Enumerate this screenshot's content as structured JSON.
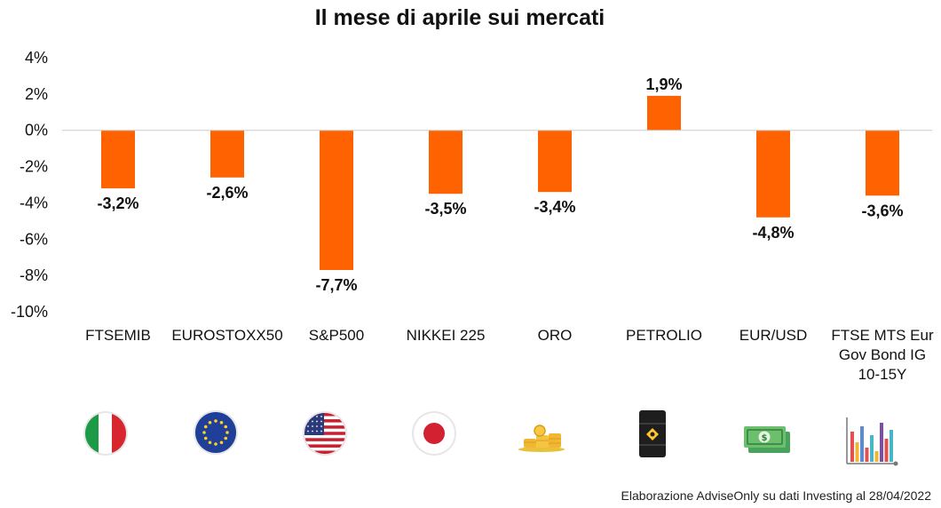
{
  "chart_data": {
    "type": "bar",
    "title": "Il mese di aprile sui mercati",
    "xlabel": "",
    "ylabel": "",
    "ylim": [
      -10,
      4
    ],
    "yticks": [
      4,
      2,
      0,
      -2,
      -4,
      -6,
      -8,
      -10
    ],
    "ytick_labels": [
      "4%",
      "2%",
      "0%",
      "-2%",
      "-4%",
      "-6%",
      "-8%",
      "-10%"
    ],
    "categories": [
      "FTSEMIB",
      "EUROSTOXX50",
      "S&P500",
      "NIKKEI 225",
      "ORO",
      "PETROLIO",
      "EUR/USD",
      "FTSE MTS Eur Gov Bond IG 10-15Y"
    ],
    "category_lines": [
      [
        "FTSEMIB"
      ],
      [
        "EUROSTOXX50"
      ],
      [
        "S&P500"
      ],
      [
        "NIKKEI 225"
      ],
      [
        "ORO"
      ],
      [
        "PETROLIO"
      ],
      [
        "EUR/USD"
      ],
      [
        "FTSE MTS Eur",
        "Gov Bond IG",
        "10-15Y"
      ]
    ],
    "values": [
      -3.2,
      -2.6,
      -7.7,
      -3.5,
      -3.4,
      1.9,
      -4.8,
      -3.6
    ],
    "data_labels": [
      "-3,2%",
      "-2,6%",
      "-7,7%",
      "-3,5%",
      "-3,4%",
      "1,9%",
      "-4,8%",
      "-3,6%"
    ],
    "bar_color": "#ff6200",
    "grid": false,
    "legend": "none"
  },
  "icons": [
    "italy-flag-icon",
    "eu-flag-icon",
    "usa-flag-icon",
    "japan-flag-icon",
    "gold-coins-icon",
    "oil-barrel-icon",
    "banknotes-icon",
    "bar-chart-icon"
  ],
  "source_note": "Elaborazione AdviseOnly su dati Investing al 28/04/2022"
}
